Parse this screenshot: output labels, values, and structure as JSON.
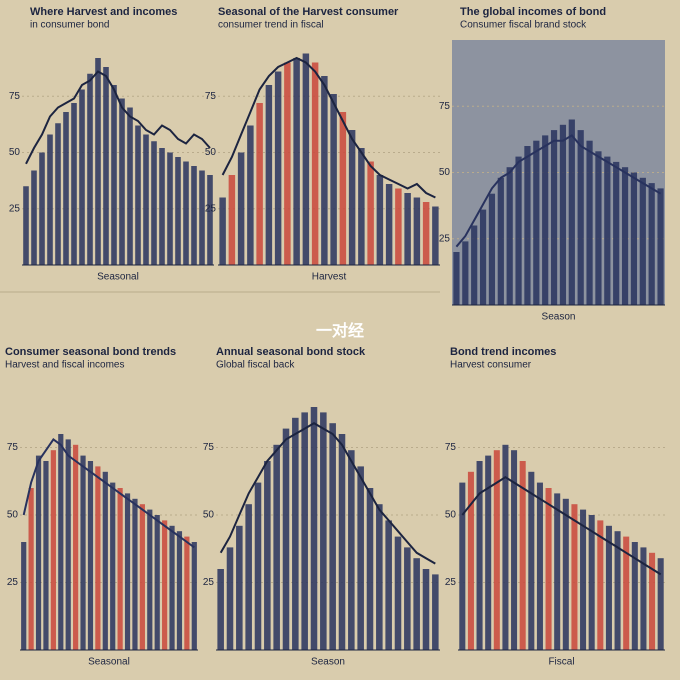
{
  "overlay_text": "一对经",
  "chart_data": [
    {
      "type": "bar",
      "title": "Where Harvest and incomes",
      "subtitle": "in consumer bond",
      "x_label": "Seasonal",
      "color": "#28325e",
      "trend_color": "#1c2440",
      "ylim": [
        0,
        100
      ],
      "yticks": [
        25,
        50,
        75
      ],
      "values": [
        35,
        42,
        50,
        58,
        63,
        68,
        72,
        78,
        85,
        92,
        88,
        80,
        74,
        70,
        62,
        58,
        55,
        52,
        50,
        48,
        46,
        44,
        42,
        40
      ],
      "trend": [
        45,
        52,
        58,
        66,
        70,
        72,
        74,
        80,
        82,
        86,
        84,
        78,
        70,
        66,
        64,
        60,
        58,
        62,
        60,
        56,
        54,
        58,
        56,
        52
      ]
    },
    {
      "type": "bar",
      "title": "Seasonal of the Harvest consumer",
      "subtitle": "consumer trend in fiscal",
      "x_label": "Harvest",
      "color": "#c9463b",
      "trend_color": "#1c2440",
      "ylim": [
        0,
        100
      ],
      "yticks": [
        25,
        50,
        75
      ],
      "values": [
        30,
        40,
        50,
        62,
        72,
        80,
        86,
        90,
        92,
        94,
        90,
        84,
        76,
        68,
        60,
        52,
        46,
        40,
        36,
        34,
        32,
        30,
        28,
        26
      ],
      "trend": [
        40,
        48,
        58,
        68,
        78,
        84,
        88,
        90,
        92,
        90,
        86,
        80,
        72,
        64,
        56,
        50,
        44,
        40,
        38,
        36,
        34,
        36,
        32,
        30
      ]
    },
    {
      "type": "bar",
      "title": "The global incomes of bond",
      "subtitle": "Consumer fiscal brand stock",
      "x_label": "Season",
      "color": "#28325e",
      "trend_color": "#28325e",
      "ylim": [
        0,
        100
      ],
      "yticks": [
        25,
        50,
        75
      ],
      "values": [
        20,
        24,
        30,
        36,
        42,
        48,
        52,
        56,
        60,
        62,
        64,
        66,
        68,
        70,
        66,
        62,
        58,
        56,
        54,
        52,
        50,
        48,
        46,
        44
      ],
      "trend": [
        22,
        26,
        32,
        38,
        44,
        48,
        50,
        54,
        56,
        58,
        60,
        62,
        62,
        64,
        60,
        58,
        56,
        54,
        52,
        50,
        48,
        46,
        44,
        42
      ]
    },
    {
      "type": "bar",
      "title": "Consumer seasonal bond trends",
      "subtitle": "Harvest and fiscal incomes",
      "x_label": "Seasonal",
      "color": "#c9463b",
      "trend_color": "#28325e",
      "ylim": [
        0,
        100
      ],
      "yticks": [
        25,
        50,
        75
      ],
      "values": [
        40,
        60,
        72,
        70,
        74,
        80,
        78,
        76,
        72,
        70,
        68,
        66,
        62,
        60,
        58,
        56,
        54,
        52,
        50,
        48,
        46,
        44,
        42,
        40
      ],
      "trend": [
        50,
        62,
        70,
        74,
        78,
        76,
        72,
        70,
        68,
        66,
        64,
        62,
        60,
        58,
        56,
        54,
        52,
        50,
        48,
        46,
        44,
        42,
        40,
        38
      ]
    },
    {
      "type": "bar",
      "title": "Annual seasonal bond stock",
      "subtitle": "Global fiscal back",
      "x_label": "Season",
      "color": "#28325e",
      "trend_color": "#1c2440",
      "ylim": [
        0,
        100
      ],
      "yticks": [
        25,
        50,
        75
      ],
      "values": [
        30,
        38,
        46,
        54,
        62,
        70,
        76,
        82,
        86,
        88,
        90,
        88,
        84,
        80,
        74,
        68,
        60,
        54,
        48,
        42,
        38,
        34,
        30,
        28
      ],
      "trend": [
        36,
        42,
        50,
        58,
        64,
        70,
        74,
        78,
        80,
        82,
        84,
        82,
        80,
        76,
        70,
        64,
        58,
        52,
        48,
        44,
        40,
        36,
        34,
        32
      ]
    },
    {
      "type": "bar",
      "title": "Bond trend incomes",
      "subtitle": "Harvest consumer",
      "x_label": "Fiscal",
      "color": "#c9463b",
      "trend_color": "#1c2440",
      "ylim": [
        0,
        100
      ],
      "yticks": [
        25,
        50,
        75
      ],
      "values": [
        62,
        66,
        70,
        72,
        74,
        76,
        74,
        70,
        66,
        62,
        60,
        58,
        56,
        54,
        52,
        50,
        48,
        46,
        44,
        42,
        40,
        38,
        36,
        34
      ],
      "trend": [
        50,
        54,
        58,
        60,
        62,
        64,
        62,
        60,
        58,
        56,
        54,
        52,
        50,
        48,
        46,
        44,
        42,
        40,
        38,
        36,
        34,
        32,
        30,
        28
      ]
    }
  ]
}
